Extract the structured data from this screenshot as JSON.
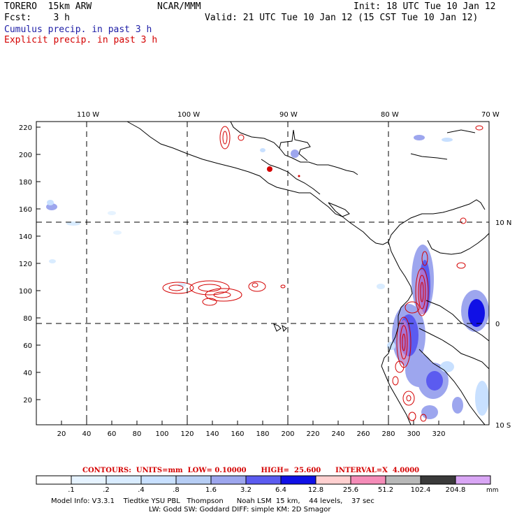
{
  "header": {
    "model": "TORERO  15km ARW",
    "org": "NCAR/MMM",
    "init": "Init: 18 UTC Tue 10 Jan 12",
    "fcst": "Fcst:    3 h",
    "valid": "Valid: 21 UTC Tue 10 Jan 12 (15 CST Tue 10 Jan 12)",
    "cumulus_label": "Cumulus precip. in past 3 h",
    "explicit_label": "Explicit precip. in past 3 h"
  },
  "colors": {
    "cumulus": "#1d1da6",
    "explicit": "#d40000",
    "land": "#000000"
  },
  "top_axis": {
    "ticks": [
      "110 W",
      "100 W",
      "90 W",
      "80 W",
      "70 W"
    ]
  },
  "right_axis": {
    "ticks": [
      "10 N",
      "0",
      "10 S"
    ]
  },
  "left_axis": {
    "ticks": [
      "220",
      "200",
      "180",
      "160",
      "140",
      "120",
      "100",
      "80",
      "60",
      "40",
      "20"
    ]
  },
  "bottom_axis": {
    "ticks": [
      "20",
      "40",
      "60",
      "80",
      "100",
      "120",
      "140",
      "160",
      "180",
      "200",
      "220",
      "240",
      "260",
      "280",
      "300",
      "320"
    ]
  },
  "contours": {
    "text": "CONTOURS:  UNITS=mm  LOW= 0.10000      HIGH=  25.600      INTERVAL=X  4.0000"
  },
  "colorbar": {
    "labels": [
      ".1",
      ".2",
      ".4",
      ".8",
      "1.6",
      "3.2",
      "6.4",
      "12.8",
      "25.6",
      "51.2",
      "102.4",
      "204.8"
    ],
    "unit": "mm",
    "colors": [
      "#ffffff",
      "#e6f3ff",
      "#d9ecff",
      "#c8e0ff",
      "#b6cdf4",
      "#9da6ee",
      "#5b5bf0",
      "#1010e6",
      "#ffd0d0",
      "#f58cb8",
      "#b8b8b8",
      "#3a3a3a",
      "#d9a6f5"
    ]
  },
  "footer": {
    "line1": "Model Info: V3.3.1    Tiedtke YSU PBL   Thompson      Noah LSM  15 km,    44 levels,    37 sec",
    "line2": "LW: Godd SW: Goddard DIFF: simple KM: 2D Smagor"
  }
}
